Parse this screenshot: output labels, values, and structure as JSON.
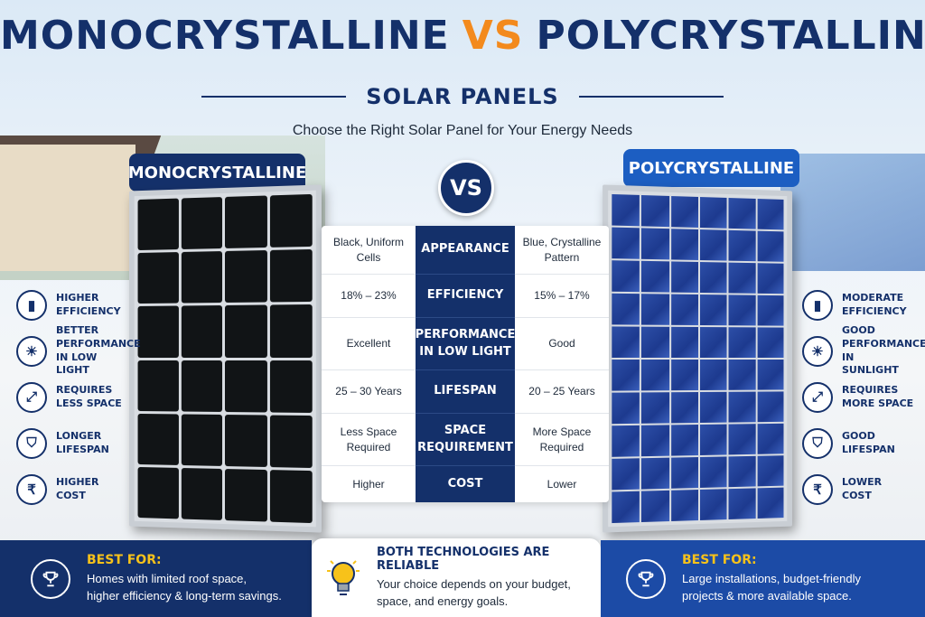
{
  "header": {
    "title_left": "MONOCRYSTALLINE",
    "title_vs": "VS",
    "title_right": "POLYCRYSTALLINE",
    "subtitle": "SOLAR PANELS",
    "tagline": "Choose the Right Solar Panel for Your Energy Needs"
  },
  "labels": {
    "mono": "MONOCRYSTALLINE",
    "poly": "POLYCRYSTALLINE",
    "vs": "VS"
  },
  "comparison": {
    "rows": [
      {
        "mono": "Black, Uniform Cells",
        "attr": "APPEARANCE",
        "poly": "Blue, Crystalline Pattern"
      },
      {
        "mono": "18% – 23%",
        "attr": "EFFICIENCY",
        "poly": "15% – 17%"
      },
      {
        "mono": "Excellent",
        "attr": "PERFORMANCE IN LOW LIGHT",
        "poly": "Good"
      },
      {
        "mono": "25 – 30 Years",
        "attr": "LIFESPAN",
        "poly": "20 – 25 Years"
      },
      {
        "mono": "Less Space Required",
        "attr": "SPACE REQUIREMENT",
        "poly": "More Space Required"
      },
      {
        "mono": "Higher",
        "attr": "COST",
        "poly": "Lower"
      }
    ]
  },
  "features_left": [
    {
      "icon": "chart-icon",
      "glyph": "▮",
      "text": "HIGHER EFFICIENCY"
    },
    {
      "icon": "sun-icon",
      "glyph": "☀",
      "text": "BETTER PERFORMANCE IN LOW LIGHT"
    },
    {
      "icon": "expand-arrows-icon",
      "glyph": "⤢",
      "text": "REQUIRES LESS SPACE"
    },
    {
      "icon": "shield-icon",
      "glyph": "⛉",
      "text": "LONGER LIFESPAN"
    },
    {
      "icon": "rupee-icon",
      "glyph": "₹",
      "text": "HIGHER COST"
    }
  ],
  "features_right": [
    {
      "icon": "chart-icon",
      "glyph": "▮",
      "text": "MODERATE EFFICIENCY"
    },
    {
      "icon": "sun-icon",
      "glyph": "☀",
      "text": "GOOD PERFORMANCE IN SUNLIGHT"
    },
    {
      "icon": "expand-arrows-icon",
      "glyph": "⤢",
      "text": "REQUIRES MORE SPACE"
    },
    {
      "icon": "shield-icon",
      "glyph": "⛉",
      "text": "GOOD LIFESPAN"
    },
    {
      "icon": "rupee-icon",
      "glyph": "₹",
      "text": "LOWER COST"
    }
  ],
  "footer": {
    "left": {
      "title": "BEST FOR:",
      "body": "Homes with limited roof space,\nhigher efficiency & long-term savings."
    },
    "middle": {
      "title": "BOTH TECHNOLOGIES ARE RELIABLE",
      "body": "Your choice depends on your budget,\nspace, and energy goals."
    },
    "right": {
      "title": "BEST FOR:",
      "body": "Large installations, budget-friendly\nprojects & more available space."
    }
  },
  "colors": {
    "navy": "#14306a",
    "accent_orange": "#f38a1d",
    "poly_blue": "#1c5ec2",
    "gold": "#f7c21a"
  }
}
